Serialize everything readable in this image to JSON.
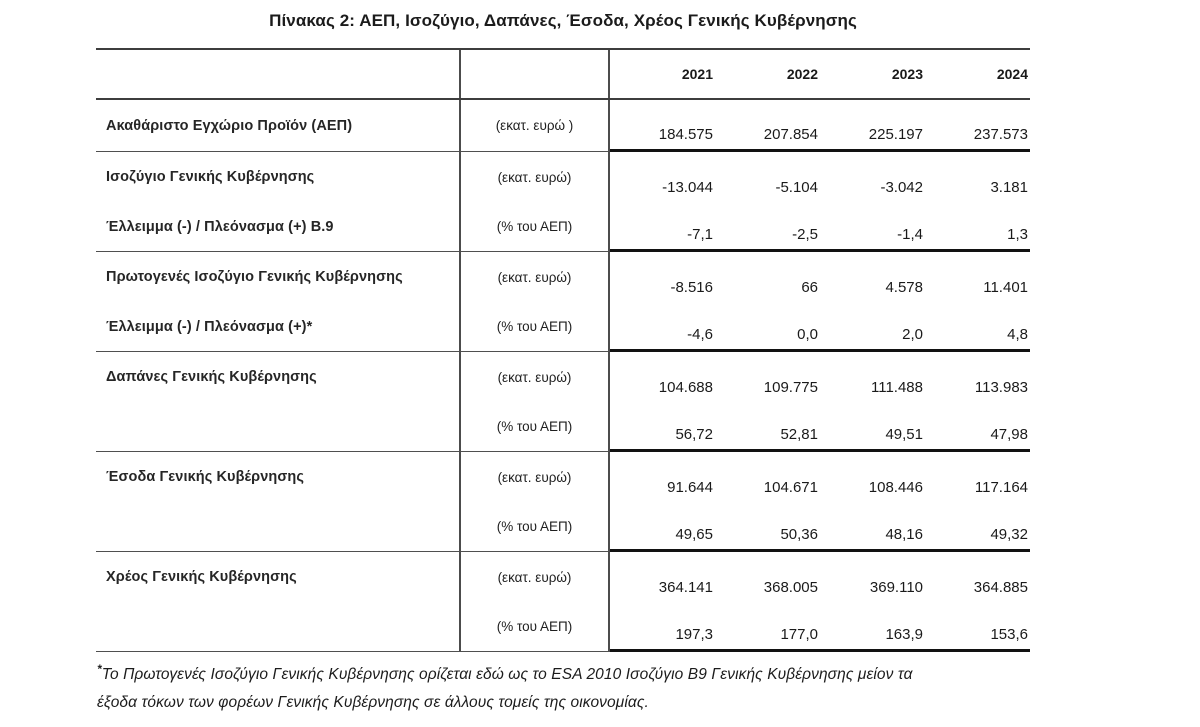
{
  "title": "Πίνακας 2: ΑΕΠ, Ισοζύγιο, Δαπάνες, Έσοδα, Χρέος Γενικής Κυβέρνησης",
  "table": {
    "years": [
      "2021",
      "2022",
      "2023",
      "2024"
    ],
    "sections": [
      {
        "rows": [
          {
            "label": "Ακαθάριστο Εγχώριο Προϊόν (ΑΕΠ)",
            "unit": "(εκατ. ευρώ )",
            "values": [
              "184.575",
              "207.854",
              "225.197",
              "237.573"
            ]
          }
        ]
      },
      {
        "rows": [
          {
            "label": "Ισοζύγιο Γενικής Κυβέρνησης",
            "unit": "(εκατ. ευρώ)",
            "values": [
              "-13.044",
              "-5.104",
              "-3.042",
              "3.181"
            ]
          },
          {
            "label": "Έλλειμμα (-) / Πλεόνασμα (+) B.9",
            "unit": "(% του ΑΕΠ)",
            "values": [
              "-7,1",
              "-2,5",
              "-1,4",
              "1,3"
            ]
          }
        ]
      },
      {
        "rows": [
          {
            "label": "Πρωτογενές Ισοζύγιο Γενικής Κυβέρνησης",
            "unit": "(εκατ. ευρώ)",
            "values": [
              "-8.516",
              "66",
              "4.578",
              "11.401"
            ]
          },
          {
            "label": "Έλλειμμα (-) / Πλεόνασμα (+)*",
            "unit": "(% του ΑΕΠ)",
            "values": [
              "-4,6",
              "0,0",
              "2,0",
              "4,8"
            ]
          }
        ]
      },
      {
        "rows": [
          {
            "label": "Δαπάνες Γενικής Κυβέρνησης",
            "unit": "(εκατ. ευρώ)",
            "values": [
              "104.688",
              "109.775",
              "111.488",
              "113.983"
            ]
          },
          {
            "label": "",
            "unit": "(% του ΑΕΠ)",
            "values": [
              "56,72",
              "52,81",
              "49,51",
              "47,98"
            ]
          }
        ]
      },
      {
        "rows": [
          {
            "label": "Έσοδα Γενικής Κυβέρνησης",
            "unit": "(εκατ. ευρώ)",
            "values": [
              "91.644",
              "104.671",
              "108.446",
              "117.164"
            ]
          },
          {
            "label": "",
            "unit": "(% του ΑΕΠ)",
            "values": [
              "49,65",
              "50,36",
              "48,16",
              "49,32"
            ]
          }
        ]
      },
      {
        "rows": [
          {
            "label": "Χρέος Γενικής Κυβέρνησης",
            "unit": "(εκατ. ευρώ)",
            "values": [
              "364.141",
              "368.005",
              "369.110",
              "364.885"
            ]
          },
          {
            "label": "",
            "unit": "(% του ΑΕΠ)",
            "values": [
              "197,3",
              "177,0",
              "163,9",
              "153,6"
            ]
          }
        ]
      }
    ]
  },
  "footnote": {
    "marker": "*",
    "line1": "Το Πρωτογενές Ισοζύγιο Γενικής Κυβέρνησης ορίζεται εδώ ως το ESA 2010 Ισοζύγιο B9 Γενικής Κυβέρνησης μείον τα",
    "line2": "έξοδα τόκων των φορέων Γενικής Κυβέρνησης σε άλλους τομείς της οικονομίας."
  },
  "colors": {
    "rule_medium": "#3d3d3d",
    "rule_thin": "#4f4f4f",
    "rule_thick": "#121212",
    "text": "#1f1f1f",
    "background": "#ffffff"
  }
}
